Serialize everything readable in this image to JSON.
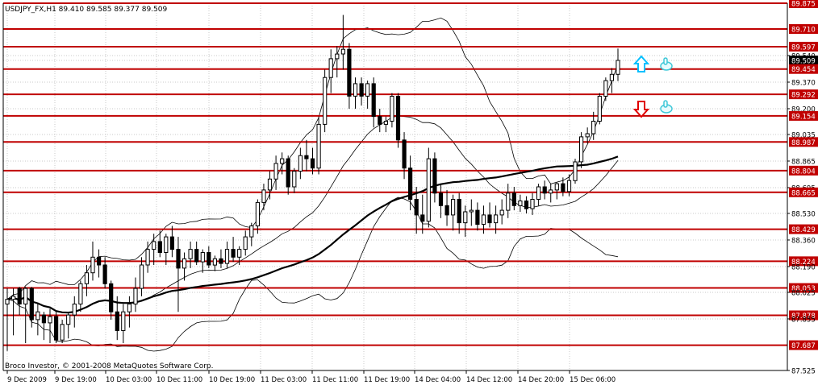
{
  "header": {
    "symbol_ohlc": "USDJPY_FX,H1  89.410 89.585 89.377 89.509"
  },
  "footer": {
    "copyright": "Broco Investor, © 2001-2008 MetaQuotes Software Corp."
  },
  "colors": {
    "background": "#ffffff",
    "candle": "#000000",
    "level_line": "#c00000",
    "level_label_bg": "#c00000",
    "level_label_text": "#ffffff",
    "grid": "#c8c8c8",
    "up_arrow": "#00bfff",
    "down_arrow": "#e00000",
    "hand_icon": "#40c8d8"
  },
  "chart_data": {
    "type": "candlestick",
    "ylim": [
      87.525,
      89.875
    ],
    "grid": true,
    "price_scale_labels": [
      "89.875",
      "89.710",
      "89.597",
      "89.540",
      "89.509",
      "89.454",
      "89.370",
      "89.292",
      "89.200",
      "89.154",
      "89.035",
      "88.987",
      "88.865",
      "88.804",
      "88.695",
      "88.665",
      "88.530",
      "88.429",
      "88.360",
      "88.224",
      "88.190",
      "88.053",
      "88.025",
      "87.878",
      "87.855",
      "87.687",
      "87.525"
    ],
    "current_price": 89.509,
    "time_labels": [
      "9 Dec 2009",
      "9 Dec 19:00",
      "10 Dec 03:00",
      "10 Dec 11:00",
      "10 Dec 19:00",
      "11 Dec 03:00",
      "11 Dec 11:00",
      "11 Dec 19:00",
      "14 Dec 04:00",
      "14 Dec 12:00",
      "14 Dec 20:00",
      "15 Dec 06:00"
    ],
    "levels": [
      89.875,
      89.71,
      89.597,
      89.454,
      89.292,
      89.154,
      88.987,
      88.804,
      88.665,
      88.429,
      88.224,
      88.053,
      87.878,
      87.687
    ],
    "ohlc": [
      [
        87.95,
        88.05,
        87.65,
        87.98
      ],
      [
        87.98,
        88.05,
        87.75,
        88.0
      ],
      [
        88.05,
        88.06,
        87.88,
        87.95
      ],
      [
        87.95,
        88.06,
        87.7,
        88.05
      ],
      [
        88.05,
        88.06,
        87.8,
        87.85
      ],
      [
        87.85,
        87.95,
        87.75,
        87.9
      ],
      [
        87.88,
        87.9,
        87.72,
        87.83
      ],
      [
        87.83,
        87.92,
        87.7,
        87.87
      ],
      [
        87.87,
        87.9,
        87.7,
        87.72
      ],
      [
        87.72,
        87.85,
        87.7,
        87.82
      ],
      [
        87.82,
        87.9,
        87.73,
        87.88
      ],
      [
        87.88,
        88.0,
        87.8,
        87.95
      ],
      [
        87.95,
        88.1,
        87.9,
        88.08
      ],
      [
        88.08,
        88.2,
        88.0,
        88.15
      ],
      [
        88.15,
        88.35,
        88.1,
        88.25
      ],
      [
        88.25,
        88.3,
        88.12,
        88.2
      ],
      [
        88.2,
        88.25,
        88.05,
        88.08
      ],
      [
        88.08,
        88.1,
        87.85,
        87.9
      ],
      [
        87.9,
        88.0,
        87.72,
        87.78
      ],
      [
        87.78,
        87.95,
        87.7,
        87.9
      ],
      [
        87.9,
        88.0,
        87.8,
        87.95
      ],
      [
        87.95,
        88.12,
        87.9,
        88.05
      ],
      [
        88.05,
        88.25,
        88.0,
        88.2
      ],
      [
        88.2,
        88.35,
        88.15,
        88.3
      ],
      [
        88.3,
        88.4,
        88.2,
        88.35
      ],
      [
        88.35,
        88.42,
        88.25,
        88.28
      ],
      [
        88.28,
        88.4,
        88.2,
        88.38
      ],
      [
        88.38,
        88.45,
        88.25,
        88.3
      ],
      [
        88.3,
        88.38,
        87.9,
        88.18
      ],
      [
        88.18,
        88.28,
        88.1,
        88.24
      ],
      [
        88.24,
        88.35,
        88.18,
        88.3
      ],
      [
        88.3,
        88.35,
        88.2,
        88.22
      ],
      [
        88.22,
        88.3,
        88.15,
        88.28
      ],
      [
        88.28,
        88.32,
        88.18,
        88.2
      ],
      [
        88.2,
        88.26,
        88.16,
        88.24
      ],
      [
        88.24,
        88.3,
        88.18,
        88.21
      ],
      [
        88.21,
        88.35,
        88.18,
        88.3
      ],
      [
        88.3,
        88.38,
        88.22,
        88.25
      ],
      [
        88.25,
        88.32,
        88.2,
        88.3
      ],
      [
        88.3,
        88.42,
        88.26,
        88.38
      ],
      [
        88.38,
        88.47,
        88.32,
        88.45
      ],
      [
        88.45,
        88.62,
        88.4,
        88.6
      ],
      [
        88.6,
        88.72,
        88.55,
        88.68
      ],
      [
        88.68,
        88.8,
        88.62,
        88.75
      ],
      [
        88.75,
        88.9,
        88.68,
        88.85
      ],
      [
        88.85,
        88.92,
        88.78,
        88.88
      ],
      [
        88.88,
        88.9,
        88.65,
        88.7
      ],
      [
        88.7,
        88.82,
        88.66,
        88.8
      ],
      [
        88.8,
        88.95,
        88.75,
        88.9
      ],
      [
        88.9,
        89.0,
        88.8,
        88.88
      ],
      [
        88.88,
        88.95,
        88.78,
        88.82
      ],
      [
        88.82,
        89.15,
        88.78,
        89.1
      ],
      [
        89.1,
        89.45,
        89.05,
        89.4
      ],
      [
        89.4,
        89.58,
        89.3,
        89.52
      ],
      [
        89.52,
        89.6,
        89.4,
        89.55
      ],
      [
        89.55,
        89.8,
        89.45,
        89.58
      ],
      [
        89.58,
        89.62,
        89.2,
        89.28
      ],
      [
        89.28,
        89.4,
        89.2,
        89.36
      ],
      [
        89.36,
        89.4,
        89.22,
        89.28
      ],
      [
        89.28,
        89.38,
        89.2,
        89.36
      ],
      [
        89.36,
        89.4,
        89.08,
        89.15
      ],
      [
        89.15,
        89.2,
        89.05,
        89.1
      ],
      [
        89.1,
        89.15,
        89.05,
        89.12
      ],
      [
        89.12,
        89.3,
        89.08,
        89.28
      ],
      [
        89.28,
        89.3,
        88.95,
        89.0
      ],
      [
        89.0,
        89.05,
        88.75,
        88.82
      ],
      [
        88.82,
        88.9,
        88.55,
        88.62
      ],
      [
        88.62,
        88.7,
        88.4,
        88.52
      ],
      [
        88.52,
        88.65,
        88.4,
        88.48
      ],
      [
        88.48,
        88.95,
        88.44,
        88.88
      ],
      [
        88.88,
        88.92,
        88.6,
        88.66
      ],
      [
        88.66,
        88.72,
        88.5,
        88.58
      ],
      [
        88.58,
        88.68,
        88.45,
        88.52
      ],
      [
        88.52,
        88.65,
        88.42,
        88.62
      ],
      [
        88.62,
        88.66,
        88.4,
        88.47
      ],
      [
        88.47,
        88.58,
        88.38,
        88.54
      ],
      [
        88.54,
        88.62,
        88.45,
        88.55
      ],
      [
        88.55,
        88.6,
        88.42,
        88.46
      ],
      [
        88.46,
        88.58,
        88.4,
        88.52
      ],
      [
        88.52,
        88.6,
        88.44,
        88.47
      ],
      [
        88.47,
        88.58,
        88.4,
        88.52
      ],
      [
        88.52,
        88.62,
        88.46,
        88.55
      ],
      [
        88.55,
        88.72,
        88.5,
        88.66
      ],
      [
        88.66,
        88.7,
        88.55,
        88.58
      ],
      [
        88.58,
        88.65,
        88.54,
        88.61
      ],
      [
        88.61,
        88.64,
        88.53,
        88.56
      ],
      [
        88.56,
        88.66,
        88.52,
        88.62
      ],
      [
        88.62,
        88.72,
        88.58,
        88.7
      ],
      [
        88.7,
        88.74,
        88.62,
        88.66
      ],
      [
        88.66,
        88.72,
        88.6,
        88.68
      ],
      [
        88.68,
        88.73,
        88.62,
        88.72
      ],
      [
        88.72,
        88.76,
        88.64,
        88.67
      ],
      [
        88.67,
        88.78,
        88.64,
        88.74
      ],
      [
        88.74,
        88.88,
        88.72,
        88.86
      ],
      [
        88.86,
        89.05,
        88.82,
        89.02
      ],
      [
        89.02,
        89.08,
        88.98,
        89.04
      ],
      [
        89.04,
        89.18,
        89.0,
        89.12
      ],
      [
        89.12,
        89.3,
        89.1,
        89.28
      ],
      [
        89.28,
        89.4,
        89.25,
        89.38
      ],
      [
        89.38,
        89.46,
        89.3,
        89.42
      ],
      [
        89.42,
        89.585,
        89.377,
        89.509
      ]
    ]
  },
  "annotations": {
    "up_arrow_icon": "arrow-up",
    "down_arrow_icon": "arrow-down",
    "hand_icon": "thumbs-up-hand"
  }
}
